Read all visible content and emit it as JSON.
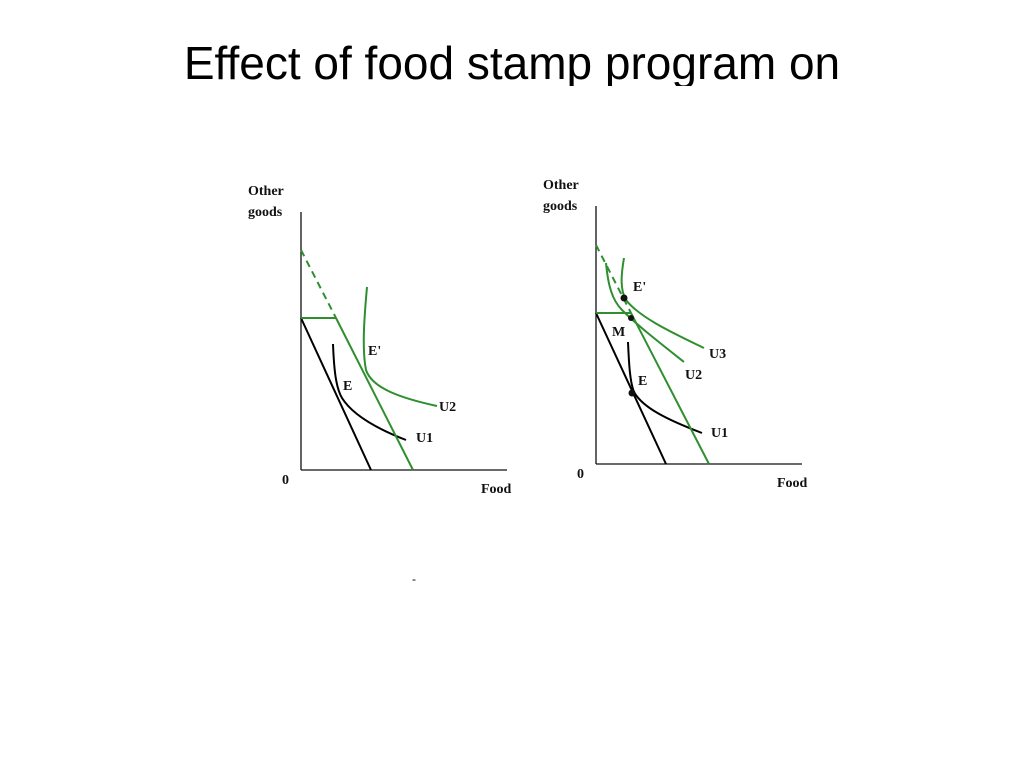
{
  "slide": {
    "title": "Effect of food stamp program on",
    "stray_mark": "-"
  },
  "left_diagram": {
    "y_axis_label": [
      "Other",
      "goods"
    ],
    "x_axis_label": "Food",
    "origin_label": "0",
    "points": {
      "original": "E",
      "new": "E'"
    },
    "curves": {
      "low": "U1",
      "high": "U2"
    },
    "colors": {
      "original": "#000000",
      "new": "#2f8f2f"
    }
  },
  "right_diagram": {
    "y_axis_label": [
      "Other",
      "goods"
    ],
    "x_axis_label": "Food",
    "origin_label": "0",
    "points": {
      "original": "E",
      "kink": "M",
      "new": "E'"
    },
    "curves": {
      "low": "U1",
      "mid": "U2",
      "high": "U3"
    },
    "colors": {
      "original": "#000000",
      "new": "#2f8f2f"
    }
  }
}
